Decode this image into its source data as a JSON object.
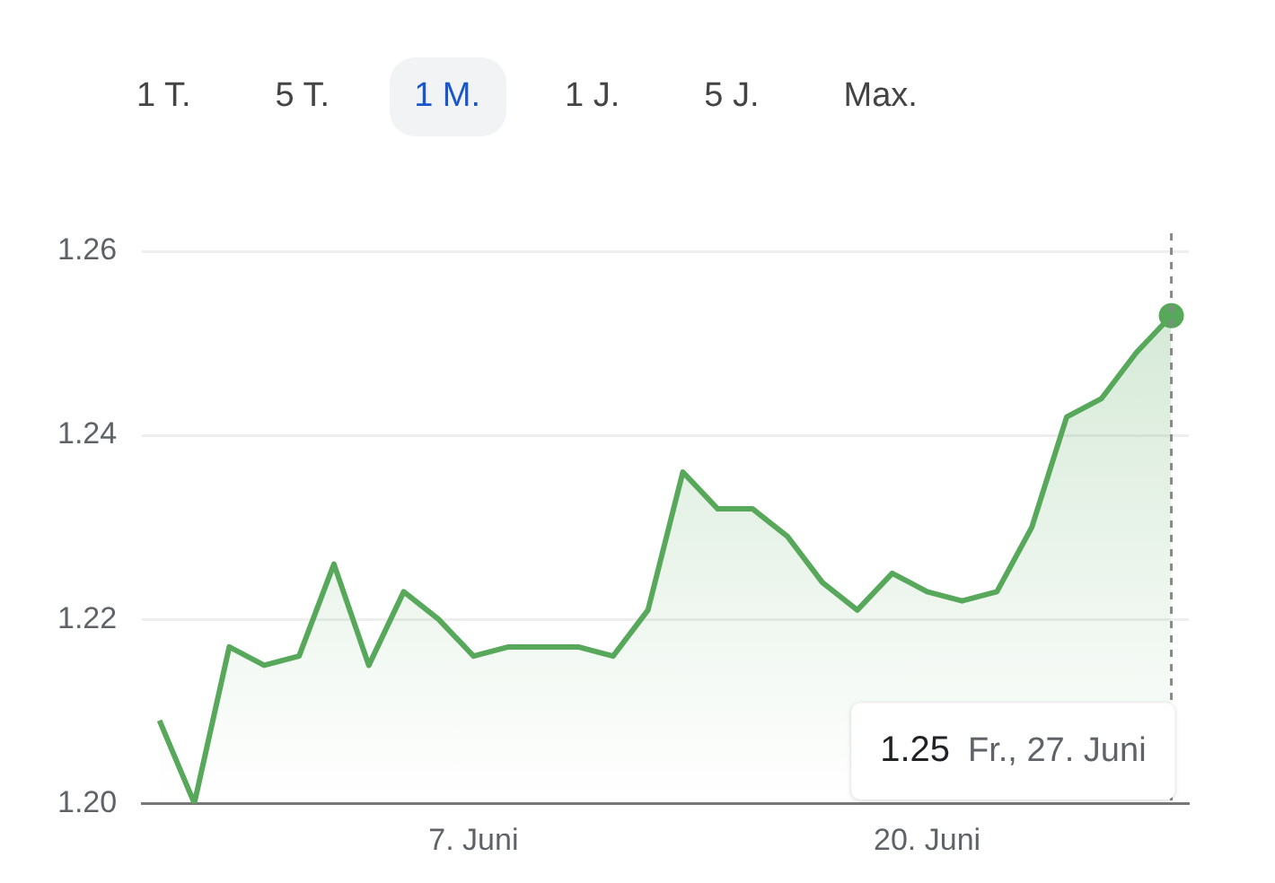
{
  "chart_data": {
    "type": "area",
    "annotations": [
      "1 T.",
      "5 T.",
      "1 M.",
      "1 J.",
      "5 J.",
      "Max.",
      "1.25",
      "Fr., 27. Juni"
    ],
    "x": [
      "--05-29",
      "--05-30",
      "--05-31",
      "--06-01",
      "--06-02",
      "--06-03",
      "--06-04",
      "--06-05",
      "--06-06",
      "--06-07",
      "--06-08",
      "--06-09",
      "--06-10",
      "--06-11",
      "--06-12",
      "--06-13",
      "--06-14",
      "--06-15",
      "--06-16",
      "--06-17",
      "--06-18",
      "--06-19",
      "--06-20",
      "--06-21",
      "--06-22",
      "--06-23",
      "--06-24",
      "--06-25",
      "--06-26",
      "--06-27"
    ],
    "series": [
      {
        "color": "#57a85b",
        "values": [
          1.209,
          1.2,
          1.217,
          1.215,
          1.216,
          1.226,
          1.215,
          1.223,
          1.22,
          1.216,
          1.217,
          1.217,
          1.217,
          1.216,
          1.221,
          1.236,
          1.232,
          1.232,
          1.229,
          1.224,
          1.221,
          1.225,
          1.223,
          1.222,
          1.223,
          1.23,
          1.242,
          1.244,
          1.249,
          1.253
        ]
      }
    ],
    "xlim": [
      "--05-28T12:00",
      "--06-27T12:00"
    ],
    "xticks": [
      {
        "value": "--06-07",
        "label": "7. Juni"
      },
      {
        "value": "--06-20",
        "label": "20. Juni"
      }
    ],
    "ylim": [
      1.2,
      1.26
    ],
    "yticks": [
      {
        "value": 1.2,
        "label": "1.20"
      },
      {
        "value": 1.22,
        "label": "1.22"
      },
      {
        "value": 1.24,
        "label": "1.24"
      },
      {
        "value": 1.26,
        "label": "1.26"
      }
    ],
    "grid": "y",
    "ref_lines": [
      {
        "axis": "x",
        "value": "--06-27",
        "color": "#888888",
        "line_style": "dashed"
      }
    ]
  }
}
